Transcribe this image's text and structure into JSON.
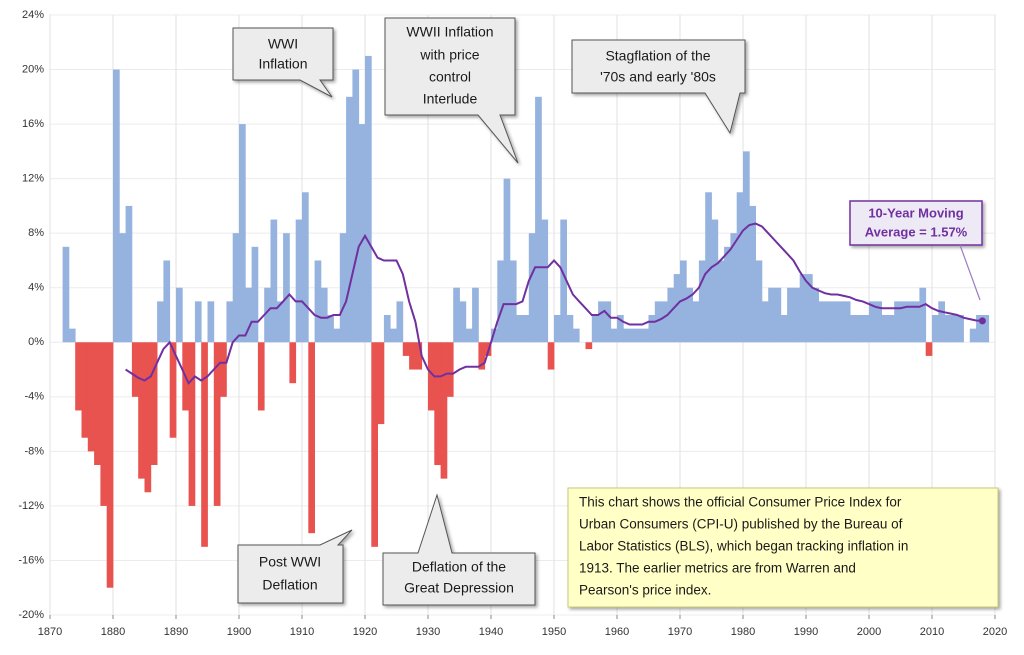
{
  "chart_data": {
    "type": "area",
    "xlim": [
      1870,
      2020
    ],
    "ylim": [
      -20,
      24
    ],
    "xticks": [
      1870,
      1880,
      1890,
      1900,
      1910,
      1920,
      1930,
      1940,
      1950,
      1960,
      1970,
      1980,
      1990,
      2000,
      2010,
      2020
    ],
    "yticks": [
      {
        "value": -20,
        "label": "-20%"
      },
      {
        "value": -16,
        "label": "-16%"
      },
      {
        "value": -12,
        "label": "-12%"
      },
      {
        "value": -8,
        "label": "-8%"
      },
      {
        "value": -4,
        "label": "-4%"
      },
      {
        "value": 0,
        "label": "0%"
      },
      {
        "value": 4,
        "label": "4%"
      },
      {
        "value": 8,
        "label": "8%"
      },
      {
        "value": 12,
        "label": "12%"
      },
      {
        "value": 16,
        "label": "16%"
      },
      {
        "value": 20,
        "label": "20%"
      },
      {
        "value": 24,
        "label": "24%"
      }
    ],
    "grid": true,
    "positive_color": "#95b3de",
    "negative_color": "#e8534f",
    "x": [
      1872,
      1873,
      1874,
      1875,
      1876,
      1877,
      1878,
      1879,
      1880,
      1881,
      1882,
      1883,
      1884,
      1885,
      1886,
      1887,
      1888,
      1889,
      1890,
      1891,
      1892,
      1893,
      1894,
      1895,
      1896,
      1897,
      1898,
      1899,
      1900,
      1901,
      1902,
      1903,
      1904,
      1905,
      1906,
      1907,
      1908,
      1909,
      1910,
      1911,
      1912,
      1913,
      1914,
      1915,
      1916,
      1917,
      1918,
      1919,
      1920,
      1921,
      1922,
      1923,
      1924,
      1925,
      1926,
      1927,
      1928,
      1929,
      1930,
      1931,
      1932,
      1933,
      1934,
      1935,
      1936,
      1937,
      1938,
      1939,
      1940,
      1941,
      1942,
      1943,
      1944,
      1945,
      1946,
      1947,
      1948,
      1949,
      1950,
      1951,
      1952,
      1953,
      1954,
      1955,
      1956,
      1957,
      1958,
      1959,
      1960,
      1961,
      1962,
      1963,
      1964,
      1965,
      1966,
      1967,
      1968,
      1969,
      1970,
      1971,
      1972,
      1973,
      1974,
      1975,
      1976,
      1977,
      1978,
      1979,
      1980,
      1981,
      1982,
      1983,
      1984,
      1985,
      1986,
      1987,
      1988,
      1989,
      1990,
      1991,
      1992,
      1993,
      1994,
      1995,
      1996,
      1997,
      1998,
      1999,
      2000,
      2001,
      2002,
      2003,
      2004,
      2005,
      2006,
      2007,
      2008,
      2009,
      2010,
      2011,
      2012,
      2013,
      2014,
      2015,
      2016,
      2017,
      2018
    ],
    "series": [
      {
        "color": "#95b3de",
        "values": [
          7,
          1,
          -5,
          -7,
          -8,
          -9,
          -12,
          -18,
          20,
          8,
          10,
          -4,
          -10,
          -11,
          -9,
          3,
          6,
          -7,
          4,
          -5,
          -12,
          3,
          -15,
          3,
          -12,
          -4,
          3,
          8,
          16,
          4,
          7,
          -5,
          4,
          9,
          3,
          8,
          -3,
          9,
          11,
          -14,
          6,
          4,
          2,
          1,
          8,
          18,
          20,
          16,
          21,
          -15,
          -6,
          2,
          1,
          3,
          -1,
          -2,
          -2,
          0,
          -5,
          -9,
          -10,
          -4,
          4,
          3,
          1,
          4,
          -2,
          -1,
          1,
          6,
          12,
          6,
          2,
          2,
          8,
          18,
          9,
          -2,
          2,
          9,
          2,
          1,
          0,
          -0.5,
          2,
          3,
          3,
          1,
          2,
          1,
          1,
          1,
          1,
          2,
          3,
          3,
          4,
          5,
          6,
          4,
          3,
          6,
          11,
          9,
          6,
          7,
          8,
          11,
          14,
          10,
          6,
          3,
          4,
          4,
          2,
          4,
          4,
          5,
          5,
          4,
          3,
          3,
          3,
          3,
          3,
          2,
          2,
          2,
          3,
          3,
          2,
          2,
          3,
          3,
          3,
          3,
          4,
          -1,
          2,
          3,
          2,
          2,
          2,
          0,
          1,
          2,
          2
        ]
      },
      {
        "color": "#7030a0",
        "values": [
          null,
          null,
          null,
          null,
          null,
          null,
          null,
          null,
          null,
          null,
          -2,
          -2.3,
          -2.6,
          -2.8,
          -2.5,
          -1.5,
          -0.5,
          0,
          -1,
          -2,
          -3,
          -2.5,
          -2.8,
          -2.5,
          -2,
          -1.5,
          -1.5,
          0,
          0.5,
          0.5,
          1.5,
          1.5,
          2,
          2.5,
          2.5,
          3,
          3.5,
          3,
          3,
          2.5,
          2,
          1.8,
          1.8,
          2,
          2,
          3,
          5,
          7,
          7.8,
          7,
          6.2,
          6,
          6,
          6,
          5,
          3,
          1.5,
          -1,
          -2,
          -2.5,
          -2.5,
          -2.3,
          -2.3,
          -2,
          -1.8,
          -1.8,
          -1.8,
          -1.5,
          0,
          1.5,
          2.8,
          2.8,
          2.8,
          3,
          4.5,
          5.5,
          5.5,
          5.5,
          6,
          5.5,
          4.5,
          3.5,
          3,
          2.5,
          2,
          2,
          2.3,
          1.8,
          1.8,
          1.5,
          1.3,
          1.3,
          1.3,
          1.5,
          1.5,
          1.7,
          2,
          2.5,
          3,
          3.2,
          3.5,
          4,
          5,
          5.5,
          5.8,
          6.3,
          6.8,
          7.5,
          8.2,
          8.6,
          8.7,
          8.5,
          8,
          7.5,
          7,
          6.5,
          6,
          5.2,
          4.5,
          4,
          3.8,
          3.6,
          3.5,
          3.5,
          3.4,
          3.3,
          3.1,
          3,
          2.8,
          2.6,
          2.5,
          2.5,
          2.5,
          2.5,
          2.6,
          2.6,
          2.6,
          2.8,
          2.5,
          2.3,
          2.2,
          2.1,
          2.0,
          1.8,
          1.7,
          1.6,
          1.57
        ]
      }
    ],
    "annotations": [
      {
        "lines": [
          "WWI",
          "Inflation"
        ]
      },
      {
        "lines": [
          "WWII Inflation",
          "with price",
          "control",
          "Interlude"
        ]
      },
      {
        "lines": [
          "Stagflation of the",
          "'70s and early '80s"
        ]
      },
      {
        "lines": [
          "Post WWI",
          "Deflation"
        ]
      },
      {
        "lines": [
          "Deflation of the",
          "Great Depression"
        ]
      },
      {
        "lines": [
          "10-Year Moving",
          "Average = 1.57%"
        ]
      },
      {
        "lines": [
          "This chart shows the official Consumer Price Index for",
          "Urban Consumers (CPI-U) published by the Bureau of",
          "Labor Statistics (BLS), which began tracking inflation in",
          "1913.  The earlier metrics are from Warren and",
          "Pearson's  price index."
        ]
      }
    ]
  }
}
